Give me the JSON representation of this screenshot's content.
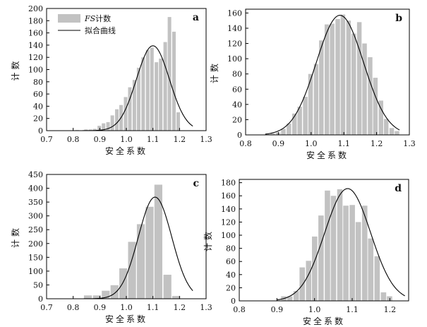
{
  "colors": {
    "bar": "#c2c2c2",
    "curve": "#000000",
    "axis": "#000000"
  },
  "chart_data": [
    {
      "type": "bar",
      "panel": "a",
      "xlabel": "安全系数",
      "ylabel": "计数",
      "xlim": [
        0.7,
        1.3
      ],
      "ylim": [
        0,
        200
      ],
      "xticks": [
        "0.7",
        "0.8",
        "0.9",
        "1.0",
        "1.1",
        "1.2",
        "1.3"
      ],
      "yticks": [
        "0",
        "20",
        "40",
        "60",
        "80",
        "100",
        "120",
        "140",
        "160",
        "180",
        "200"
      ],
      "bin_width": 0.0165,
      "bins": [
        0.807,
        0.824,
        0.84,
        0.857,
        0.873,
        0.89,
        0.906,
        0.923,
        0.939,
        0.956,
        0.972,
        0.989,
        1.005,
        1.022,
        1.038,
        1.055,
        1.072,
        1.088,
        1.105,
        1.121,
        1.138,
        1.154,
        1.171,
        1.187,
        1.204
      ],
      "values": [
        1,
        0,
        2,
        2,
        3,
        8,
        12,
        14,
        25,
        35,
        42,
        55,
        71,
        83,
        103,
        120,
        132,
        136,
        112,
        118,
        145,
        186,
        162,
        30,
        0
      ],
      "fit_curve": {
        "name": "拟合曲线",
        "mean": 1.1,
        "sd": 0.062,
        "peak": 139,
        "x_range": [
          0.8,
          1.25
        ]
      },
      "legend": [
        {
          "label": "FS计数",
          "kind": "bar"
        },
        {
          "label": "拟合曲线",
          "kind": "line"
        }
      ],
      "legend_position": "top-left"
    },
    {
      "type": "bar",
      "panel": "b",
      "xlabel": "安全系数",
      "ylabel": "计数",
      "xlim": [
        0.8,
        1.3
      ],
      "ylim": [
        0,
        165
      ],
      "xticks": [
        "0.8",
        "0.9",
        "1.0",
        "1.1",
        "1.2",
        "1.3"
      ],
      "yticks": [
        "0",
        "20",
        "40",
        "60",
        "80",
        "100",
        "120",
        "140",
        "160"
      ],
      "bin_width": 0.0165,
      "bins": [
        0.858,
        0.874,
        0.891,
        0.907,
        0.924,
        0.941,
        0.957,
        0.974,
        0.99,
        1.007,
        1.023,
        1.04,
        1.056,
        1.073,
        1.089,
        1.106,
        1.122,
        1.139,
        1.155,
        1.172,
        1.188,
        1.205,
        1.221,
        1.238,
        1.254
      ],
      "values": [
        1,
        2,
        3,
        8,
        15,
        28,
        37,
        50,
        80,
        93,
        124,
        145,
        146,
        152,
        158,
        150,
        133,
        148,
        120,
        102,
        75,
        45,
        21,
        9,
        5
      ],
      "fit_curve": {
        "mean": 1.088,
        "sd": 0.072,
        "peak": 157,
        "x_range": [
          0.86,
          1.27
        ]
      }
    },
    {
      "type": "bar",
      "panel": "c",
      "xlabel": "安全系数",
      "ylabel": "计数",
      "xlim": [
        0.7,
        1.3
      ],
      "ylim": [
        0,
        450
      ],
      "xticks": [
        "0.7",
        "0.8",
        "0.9",
        "1.0",
        "1.1",
        "1.2",
        "1.3"
      ],
      "yticks": [
        "0",
        "50",
        "100",
        "150",
        "200",
        "250",
        "300",
        "350",
        "400",
        "450"
      ],
      "bin_width": 0.033,
      "bins": [
        0.839,
        0.873,
        0.906,
        0.939,
        0.972,
        1.005,
        1.038,
        1.071,
        1.104,
        1.138,
        1.171,
        1.204
      ],
      "values": [
        12,
        12,
        29,
        49,
        110,
        206,
        270,
        333,
        413,
        87,
        10,
        0
      ],
      "fit_curve": {
        "mean": 1.108,
        "sd": 0.063,
        "peak": 368,
        "x_range": [
          0.74,
          1.25
        ]
      }
    },
    {
      "type": "bar",
      "panel": "d",
      "xlabel": "安全系数",
      "ylabel": "计数",
      "xlim": [
        0.8,
        1.25
      ],
      "ylim": [
        0,
        185
      ],
      "xticks": [
        "0.8",
        "0.9",
        "1.0",
        "1.1",
        "1.2"
      ],
      "yticks": [
        "0",
        "20",
        "40",
        "60",
        "80",
        "100",
        "120",
        "140",
        "160",
        "180"
      ],
      "bin_width": 0.0165,
      "bins": [
        0.91,
        0.926,
        0.943,
        0.959,
        0.976,
        0.992,
        1.009,
        1.026,
        1.042,
        1.059,
        1.075,
        1.092,
        1.108,
        1.125,
        1.141,
        1.158,
        1.175,
        1.191,
        1.208,
        1.224
      ],
      "values": [
        7,
        7,
        15,
        51,
        61,
        98,
        130,
        168,
        160,
        170,
        145,
        146,
        120,
        145,
        95,
        68,
        13,
        7,
        0,
        0
      ],
      "fit_curve": {
        "mean": 1.088,
        "sd": 0.061,
        "peak": 171,
        "x_range": [
          0.9,
          1.24
        ]
      }
    }
  ]
}
